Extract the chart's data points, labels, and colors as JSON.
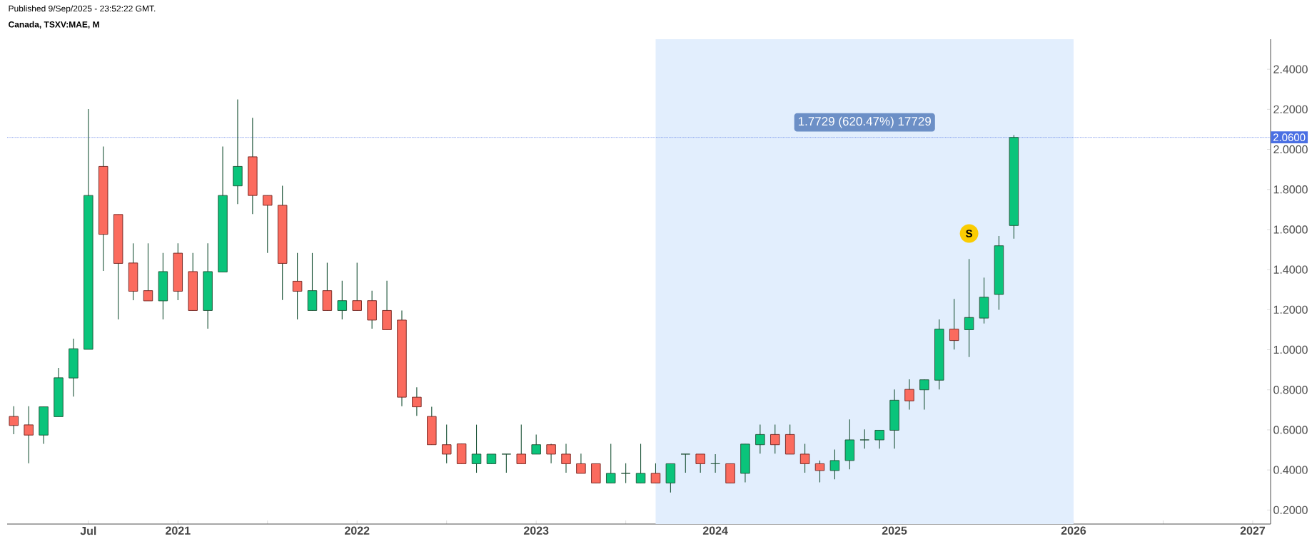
{
  "chart_data": {
    "type": "candlestick",
    "title": "Canada, TSXV:MAE, M",
    "annotations": [
      "Published 9/Sep/2025 - 23:52:22 GMT.",
      "1.7729 (620.47%) 17729",
      {
        "text": "S",
        "x": "2025-06",
        "y": 1.58
      }
    ],
    "x": [
      "2020-02",
      "2020-03",
      "2020-04",
      "2020-05",
      "2020-06",
      "2020-07",
      "2020-08",
      "2020-09",
      "2020-10",
      "2020-11",
      "2020-12",
      "2021-01",
      "2021-02",
      "2021-03",
      "2021-04",
      "2021-05",
      "2021-06",
      "2021-07",
      "2021-08",
      "2021-09",
      "2021-10",
      "2021-11",
      "2021-12",
      "2022-01",
      "2022-02",
      "2022-03",
      "2022-04",
      "2022-05",
      "2022-06",
      "2022-07",
      "2022-08",
      "2022-09",
      "2022-10",
      "2022-11",
      "2022-12",
      "2023-01",
      "2023-02",
      "2023-03",
      "2023-04",
      "2023-05",
      "2023-06",
      "2023-07",
      "2023-08",
      "2023-09",
      "2023-10",
      "2023-11",
      "2023-12",
      "2024-01",
      "2024-02",
      "2024-03",
      "2024-04",
      "2024-05",
      "2024-06",
      "2024-07",
      "2024-08",
      "2024-09",
      "2024-10",
      "2024-11",
      "2024-12",
      "2025-01",
      "2025-02",
      "2025-03",
      "2025-04",
      "2025-05",
      "2025-06",
      "2025-07",
      "2025-08",
      "2025-09"
    ],
    "ohlc": [
      [
        0.667,
        0.718,
        0.578,
        0.622
      ],
      [
        0.625,
        0.718,
        0.433,
        0.574
      ],
      [
        0.574,
        0.715,
        0.53,
        0.715
      ],
      [
        0.666,
        0.909,
        0.666,
        0.86
      ],
      [
        0.859,
        1.055,
        0.766,
        1.005
      ],
      [
        1.002,
        2.201,
        1.002,
        1.77
      ],
      [
        1.915,
        2.014,
        1.393,
        1.576
      ],
      [
        1.675,
        1.675,
        1.151,
        1.431
      ],
      [
        1.433,
        1.531,
        1.247,
        1.292
      ],
      [
        1.295,
        1.531,
        1.244,
        1.244
      ],
      [
        1.244,
        1.483,
        1.151,
        1.39
      ],
      [
        1.482,
        1.531,
        1.247,
        1.292
      ],
      [
        1.39,
        1.483,
        1.196,
        1.196
      ],
      [
        1.196,
        1.531,
        1.105,
        1.39
      ],
      [
        1.388,
        2.014,
        1.388,
        1.77
      ],
      [
        1.818,
        2.249,
        1.727,
        1.915
      ],
      [
        1.963,
        2.158,
        1.677,
        1.77
      ],
      [
        1.77,
        1.77,
        1.483,
        1.721
      ],
      [
        1.721,
        1.819,
        1.248,
        1.431
      ],
      [
        1.342,
        1.483,
        1.151,
        1.292
      ],
      [
        1.196,
        1.483,
        1.196,
        1.295
      ],
      [
        1.295,
        1.434,
        1.196,
        1.196
      ],
      [
        1.196,
        1.344,
        1.151,
        1.245
      ],
      [
        1.245,
        1.434,
        1.196,
        1.196
      ],
      [
        1.245,
        1.295,
        1.105,
        1.148
      ],
      [
        1.196,
        1.344,
        1.1,
        1.1
      ],
      [
        1.148,
        1.196,
        0.718,
        0.763
      ],
      [
        0.763,
        0.812,
        0.67,
        0.715
      ],
      [
        0.667,
        0.715,
        0.526,
        0.526
      ],
      [
        0.526,
        0.626,
        0.433,
        0.479
      ],
      [
        0.53,
        0.53,
        0.431,
        0.431
      ],
      [
        0.431,
        0.626,
        0.386,
        0.479
      ],
      [
        0.431,
        0.479,
        0.431,
        0.479
      ],
      [
        0.479,
        0.479,
        0.386,
        0.479
      ],
      [
        0.479,
        0.626,
        0.431,
        0.431
      ],
      [
        0.479,
        0.577,
        0.479,
        0.526
      ],
      [
        0.526,
        0.53,
        0.433,
        0.479
      ],
      [
        0.479,
        0.53,
        0.386,
        0.431
      ],
      [
        0.431,
        0.481,
        0.383,
        0.383
      ],
      [
        0.431,
        0.431,
        0.335,
        0.335
      ],
      [
        0.335,
        0.53,
        0.335,
        0.383
      ],
      [
        0.383,
        0.433,
        0.335,
        0.383
      ],
      [
        0.335,
        0.53,
        0.335,
        0.383
      ],
      [
        0.383,
        0.433,
        0.335,
        0.335
      ],
      [
        0.335,
        0.431,
        0.287,
        0.431
      ],
      [
        0.479,
        0.479,
        0.386,
        0.479
      ],
      [
        0.479,
        0.479,
        0.386,
        0.431
      ],
      [
        0.431,
        0.479,
        0.386,
        0.431
      ],
      [
        0.431,
        0.431,
        0.335,
        0.335
      ],
      [
        0.383,
        0.529,
        0.338,
        0.529
      ],
      [
        0.526,
        0.626,
        0.481,
        0.577
      ],
      [
        0.577,
        0.626,
        0.481,
        0.526
      ],
      [
        0.577,
        0.626,
        0.479,
        0.479
      ],
      [
        0.479,
        0.53,
        0.386,
        0.431
      ],
      [
        0.431,
        0.447,
        0.338,
        0.397
      ],
      [
        0.397,
        0.502,
        0.353,
        0.447
      ],
      [
        0.447,
        0.652,
        0.403,
        0.55
      ],
      [
        0.55,
        0.602,
        0.506,
        0.55
      ],
      [
        0.55,
        0.598,
        0.506,
        0.598
      ],
      [
        0.598,
        0.802,
        0.506,
        0.748
      ],
      [
        0.802,
        0.852,
        0.701,
        0.745
      ],
      [
        0.8,
        0.852,
        0.701,
        0.85
      ],
      [
        0.848,
        1.151,
        0.802,
        1.103
      ],
      [
        1.103,
        1.254,
        1.001,
        1.046
      ],
      [
        1.1,
        1.453,
        0.964,
        1.161
      ],
      [
        1.158,
        1.36,
        1.131,
        1.262
      ],
      [
        1.276,
        1.568,
        1.199,
        1.519
      ],
      [
        1.62,
        2.071,
        1.554,
        2.06
      ]
    ],
    "colors": [
      "#fb6b5e",
      "#fb6b5e",
      "#0ac47b",
      "#0ac47b",
      "#0ac47b",
      "#0ac47b",
      "#fb6b5e",
      "#fb6b5e",
      "#fb6b5e",
      "#fb6b5e",
      "#0ac47b",
      "#fb6b5e",
      "#fb6b5e",
      "#0ac47b",
      "#0ac47b",
      "#0ac47b",
      "#fb6b5e",
      "#fb6b5e",
      "#fb6b5e",
      "#fb6b5e",
      "#0ac47b",
      "#fb6b5e",
      "#0ac47b",
      "#fb6b5e",
      "#fb6b5e",
      "#fb6b5e",
      "#fb6b5e",
      "#fb6b5e",
      "#fb6b5e",
      "#fb6b5e",
      "#fb6b5e",
      "#0ac47b",
      "#0ac47b",
      "#1f5034",
      "#fb6b5e",
      "#0ac47b",
      "#fb6b5e",
      "#fb6b5e",
      "#fb6b5e",
      "#fb6b5e",
      "#0ac47b",
      "#1f5034",
      "#0ac47b",
      "#fb6b5e",
      "#0ac47b",
      "#1f5034",
      "#fb6b5e",
      "#1f5034",
      "#fb6b5e",
      "#0ac47b",
      "#0ac47b",
      "#fb6b5e",
      "#fb6b5e",
      "#fb6b5e",
      "#fb6b5e",
      "#0ac47b",
      "#0ac47b",
      "#1f5034",
      "#0ac47b",
      "#0ac47b",
      "#fb6b5e",
      "#0ac47b",
      "#0ac47b",
      "#fb6b5e",
      "#0ac47b",
      "#0ac47b",
      "#0ac47b",
      "#0ac47b"
    ],
    "xlim": [
      "2020-01-18",
      "2027-02-07"
    ],
    "xticks": [
      {
        "value": "2020-07",
        "label": "Jul"
      },
      {
        "value": "2021-01",
        "label": "2021"
      },
      {
        "value": "2021-07",
        "label": null
      },
      {
        "value": "2022-01",
        "label": "2022"
      },
      {
        "value": "2022-07",
        "label": null
      },
      {
        "value": "2023-01",
        "label": "2023"
      },
      {
        "value": "2023-07",
        "label": null
      },
      {
        "value": "2024-01",
        "label": "2024"
      },
      {
        "value": "2024-07",
        "label": null
      },
      {
        "value": "2025-01",
        "label": "2025"
      },
      {
        "value": "2025-07",
        "label": null
      },
      {
        "value": "2026-01",
        "label": "2026"
      },
      {
        "value": "2026-07",
        "label": null
      },
      {
        "value": "2027-01",
        "label": "2027"
      }
    ],
    "ylim": [
      0.13,
      2.55
    ],
    "yticks": [
      {
        "value": 0.2,
        "label": "0.2000"
      },
      {
        "value": 0.4,
        "label": "0.4000"
      },
      {
        "value": 0.6,
        "label": "0.6000"
      },
      {
        "value": 0.8,
        "label": "0.8000"
      },
      {
        "value": 1.0,
        "label": "1.0000"
      },
      {
        "value": 1.2,
        "label": "1.2000"
      },
      {
        "value": 1.4,
        "label": "1.4000"
      },
      {
        "value": 1.6,
        "label": "1.6000"
      },
      {
        "value": 1.8,
        "label": "1.8000"
      },
      {
        "value": 2.0,
        "label": "2.0000"
      },
      {
        "value": 2.2,
        "label": "2.2000"
      },
      {
        "value": 2.4,
        "label": "2.4000"
      }
    ],
    "ref_lines": [
      {
        "axis": "y",
        "value": 2.06,
        "label": "2.0600",
        "color": "#4a6fe3",
        "line_style": "dotted"
      }
    ],
    "bands": [
      {
        "axis": "x",
        "from": "2023-09",
        "to": "2026-01",
        "color": "#e2eefd"
      }
    ]
  }
}
